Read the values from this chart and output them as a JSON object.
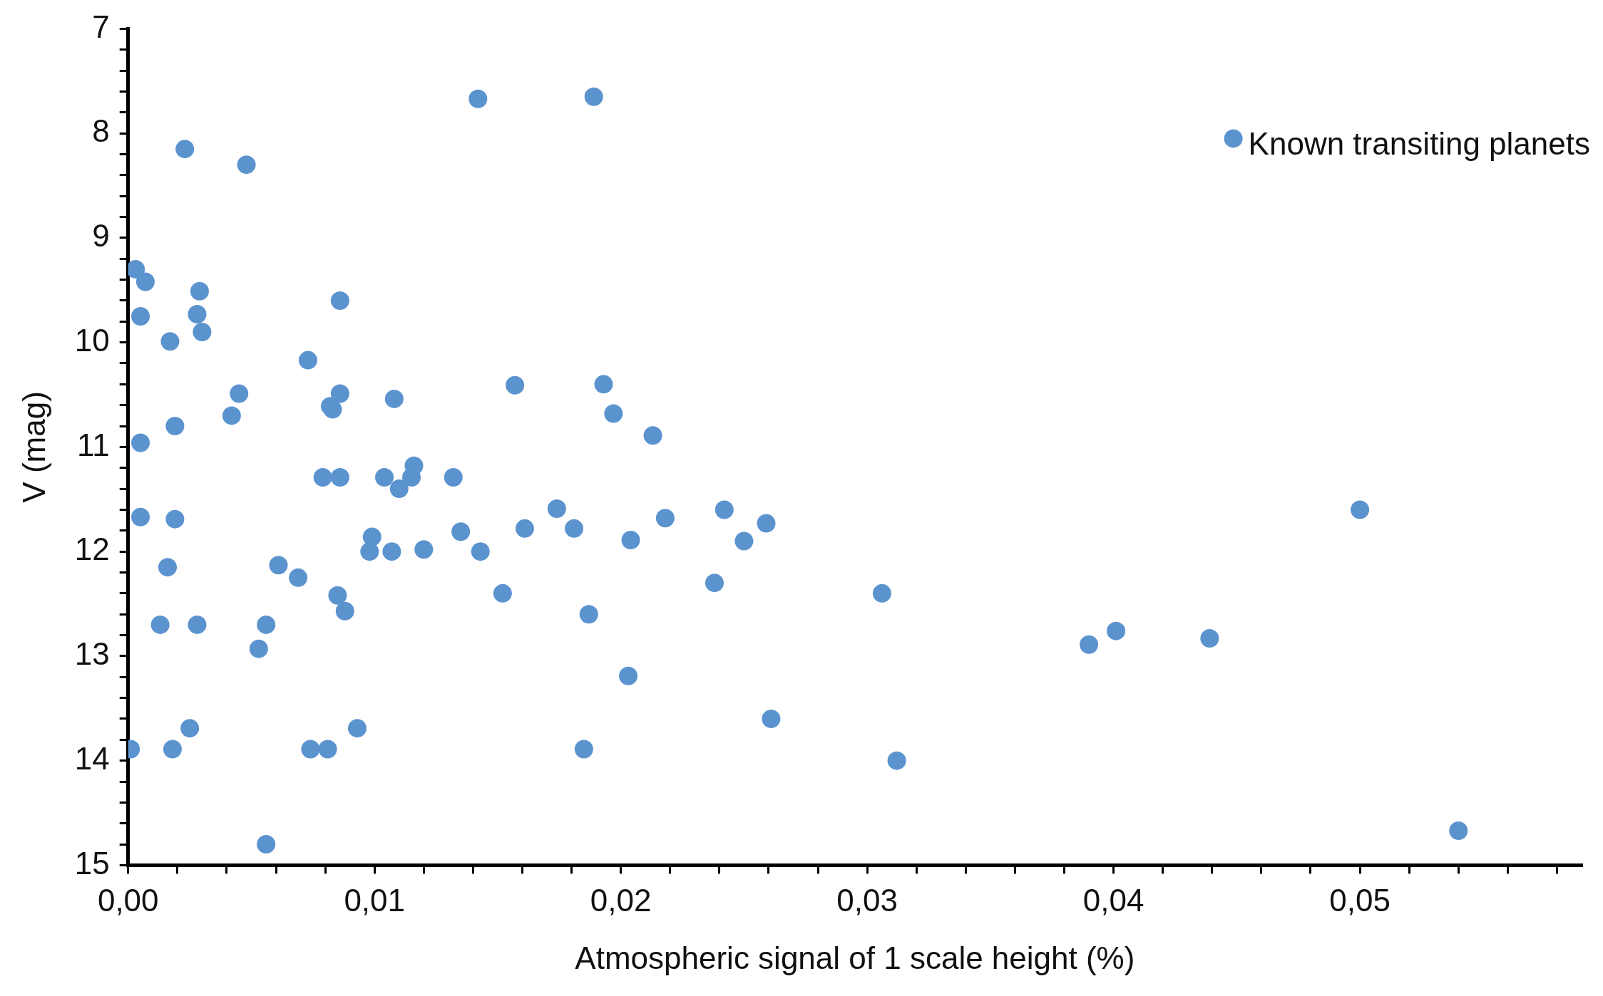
{
  "chart_data": {
    "type": "scatter",
    "xlabel": "Atmospheric signal of 1 scale height (%)",
    "ylabel": "V (mag)",
    "xlim": [
      0,
      0.059
    ],
    "ylim": [
      15,
      7
    ],
    "xticks": [
      {
        "value": 0,
        "label": "0,00"
      },
      {
        "value": 0.002,
        "label": null
      },
      {
        "value": 0.004,
        "label": null
      },
      {
        "value": 0.006,
        "label": null
      },
      {
        "value": 0.008,
        "label": null
      },
      {
        "value": 0.01,
        "label": "0,01"
      },
      {
        "value": 0.012,
        "label": null
      },
      {
        "value": 0.014,
        "label": null
      },
      {
        "value": 0.016,
        "label": null
      },
      {
        "value": 0.018,
        "label": null
      },
      {
        "value": 0.02,
        "label": "0,02"
      },
      {
        "value": 0.022,
        "label": null
      },
      {
        "value": 0.024,
        "label": null
      },
      {
        "value": 0.026,
        "label": null
      },
      {
        "value": 0.028,
        "label": null
      },
      {
        "value": 0.03,
        "label": "0,03"
      },
      {
        "value": 0.032,
        "label": null
      },
      {
        "value": 0.034,
        "label": null
      },
      {
        "value": 0.036,
        "label": null
      },
      {
        "value": 0.038,
        "label": null
      },
      {
        "value": 0.04,
        "label": "0,04"
      },
      {
        "value": 0.042,
        "label": null
      },
      {
        "value": 0.044,
        "label": null
      },
      {
        "value": 0.046,
        "label": null
      },
      {
        "value": 0.048,
        "label": null
      },
      {
        "value": 0.05,
        "label": "0,05"
      },
      {
        "value": 0.052,
        "label": null
      },
      {
        "value": 0.054,
        "label": null
      },
      {
        "value": 0.056,
        "label": null
      },
      {
        "value": 0.058,
        "label": null
      }
    ],
    "yticks": [
      7,
      {
        "value": 7.2,
        "label": null
      },
      {
        "value": 7.4,
        "label": null
      },
      {
        "value": 7.6,
        "label": null
      },
      {
        "value": 7.8,
        "label": null
      },
      8,
      {
        "value": 8.2,
        "label": null
      },
      {
        "value": 8.4,
        "label": null
      },
      {
        "value": 8.6,
        "label": null
      },
      {
        "value": 8.8,
        "label": null
      },
      9,
      {
        "value": 9.2,
        "label": null
      },
      {
        "value": 9.4,
        "label": null
      },
      {
        "value": 9.6,
        "label": null
      },
      {
        "value": 9.8,
        "label": null
      },
      10,
      {
        "value": 10.2,
        "label": null
      },
      {
        "value": 10.4,
        "label": null
      },
      {
        "value": 10.6,
        "label": null
      },
      {
        "value": 10.8,
        "label": null
      },
      11,
      {
        "value": 11.2,
        "label": null
      },
      {
        "value": 11.4,
        "label": null
      },
      {
        "value": 11.6,
        "label": null
      },
      {
        "value": 11.8,
        "label": null
      },
      12,
      {
        "value": 12.2,
        "label": null
      },
      {
        "value": 12.4,
        "label": null
      },
      {
        "value": 12.6,
        "label": null
      },
      {
        "value": 12.8,
        "label": null
      },
      13,
      {
        "value": 13.2,
        "label": null
      },
      {
        "value": 13.4,
        "label": null
      },
      {
        "value": 13.6,
        "label": null
      },
      {
        "value": 13.8,
        "label": null
      },
      14,
      {
        "value": 14.2,
        "label": null
      },
      {
        "value": 14.4,
        "label": null
      },
      {
        "value": 14.6,
        "label": null
      },
      {
        "value": 14.8,
        "label": null
      },
      15
    ],
    "legend": "top right",
    "marker": "circle",
    "grid": false,
    "series": [
      {
        "name": "Known transiting planets",
        "color": "#5b93cf",
        "x": [
          0.0142,
          0.0189,
          0.0023,
          0.0048,
          0.0003,
          0.0007,
          0.0029,
          0.0028,
          0.0005,
          0.0086,
          0.003,
          0.0017,
          0.0073,
          0.0157,
          0.0193,
          0.0045,
          0.0086,
          0.0108,
          0.0082,
          0.0083,
          0.0042,
          0.0197,
          0.0019,
          0.0213,
          0.0005,
          0.0116,
          0.0079,
          0.0086,
          0.0104,
          0.0115,
          0.0132,
          0.011,
          0.0174,
          0.0242,
          0.05,
          0.0005,
          0.0019,
          0.0218,
          0.0259,
          0.0161,
          0.0181,
          0.0135,
          0.0099,
          0.0204,
          0.025,
          0.0098,
          0.0107,
          0.012,
          0.0143,
          0.0061,
          0.0016,
          0.0069,
          0.0238,
          0.0085,
          0.0152,
          0.0306,
          0.0088,
          0.0187,
          0.0013,
          0.0028,
          0.0056,
          0.0401,
          0.0439,
          0.039,
          0.0053,
          0.0203,
          0.0261,
          0.0025,
          0.0093,
          0.0001,
          0.0018,
          0.0074,
          0.0081,
          0.0185,
          0.0312,
          0.054,
          0.0056
        ],
        "values": [
          7.67,
          7.65,
          8.15,
          8.3,
          9.3,
          9.42,
          9.51,
          9.73,
          9.75,
          9.6,
          9.9,
          9.99,
          10.17,
          10.41,
          10.4,
          10.49,
          10.49,
          10.54,
          10.61,
          10.64,
          10.7,
          10.68,
          10.8,
          10.89,
          10.96,
          11.18,
          11.29,
          11.29,
          11.29,
          11.29,
          11.29,
          11.4,
          11.59,
          11.6,
          11.6,
          11.67,
          11.69,
          11.68,
          11.73,
          11.78,
          11.78,
          11.81,
          11.86,
          11.89,
          11.9,
          12,
          12,
          11.98,
          12,
          12.13,
          12.15,
          12.25,
          12.3,
          12.42,
          12.4,
          12.4,
          12.57,
          12.6,
          12.7,
          12.7,
          12.7,
          12.76,
          12.83,
          12.89,
          12.93,
          13.19,
          13.6,
          13.69,
          13.69,
          13.89,
          13.89,
          13.89,
          13.89,
          13.89,
          14,
          14.67,
          14.8
        ]
      }
    ]
  }
}
